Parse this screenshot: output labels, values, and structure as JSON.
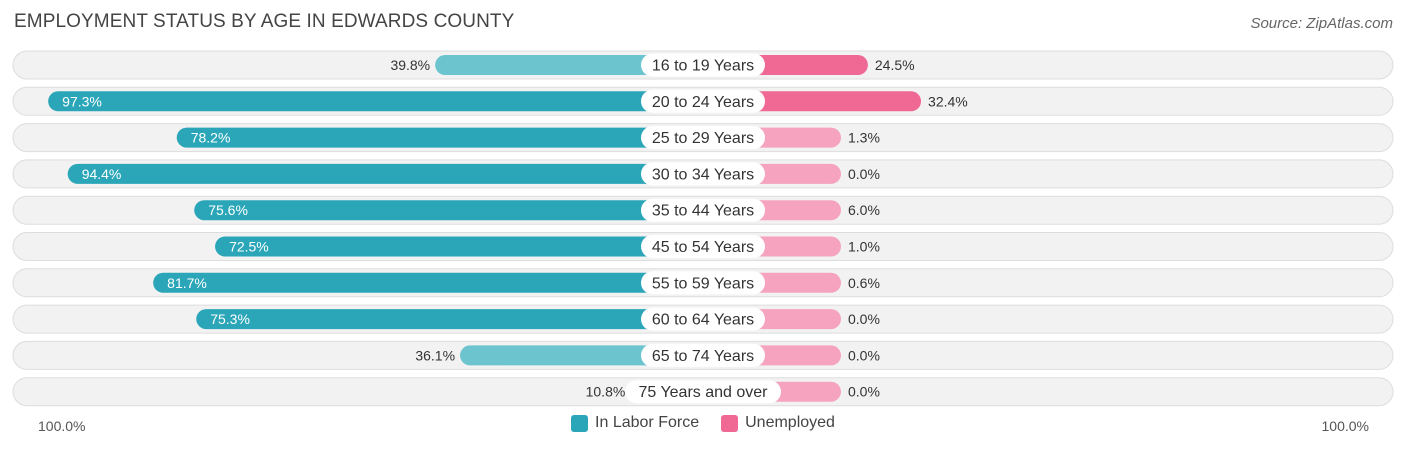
{
  "title": "EMPLOYMENT STATUS BY AGE IN EDWARDS COUNTY",
  "source": "Source: ZipAtlas.com",
  "axis": {
    "left_label": "100.0%",
    "right_label": "100.0%"
  },
  "colors": {
    "labor_dark": "#2aa6b8",
    "labor_light": "#6cc4cf",
    "unemp_dark": "#f06994",
    "unemp_light": "#f5a3be",
    "row_bg": "#f2f2f2",
    "row_border": "#dddddd"
  },
  "chart_data": {
    "type": "bar",
    "orientation": "horizontal-diverging",
    "title": "EMPLOYMENT STATUS BY AGE IN EDWARDS COUNTY",
    "categories": [
      "16 to 19 Years",
      "20 to 24 Years",
      "25 to 29 Years",
      "30 to 34 Years",
      "35 to 44 Years",
      "45 to 54 Years",
      "55 to 59 Years",
      "60 to 64 Years",
      "65 to 74 Years",
      "75 Years and over"
    ],
    "series": [
      {
        "name": "In Labor Force",
        "values": [
          39.8,
          97.3,
          78.2,
          94.4,
          75.6,
          72.5,
          81.7,
          75.3,
          36.1,
          10.8
        ],
        "labels": [
          "39.8%",
          "97.3%",
          "78.2%",
          "94.4%",
          "75.6%",
          "72.5%",
          "81.7%",
          "75.3%",
          "36.1%",
          "10.8%"
        ]
      },
      {
        "name": "Unemployed",
        "values": [
          24.5,
          32.4,
          1.3,
          0.0,
          6.0,
          1.0,
          0.6,
          0.0,
          0.0,
          0.0
        ],
        "labels": [
          "24.5%",
          "32.4%",
          "1.3%",
          "0.0%",
          "6.0%",
          "1.0%",
          "0.6%",
          "0.0%",
          "0.0%",
          "0.0%"
        ]
      }
    ],
    "xlim": [
      0,
      100
    ],
    "legend": "bottom-center"
  }
}
